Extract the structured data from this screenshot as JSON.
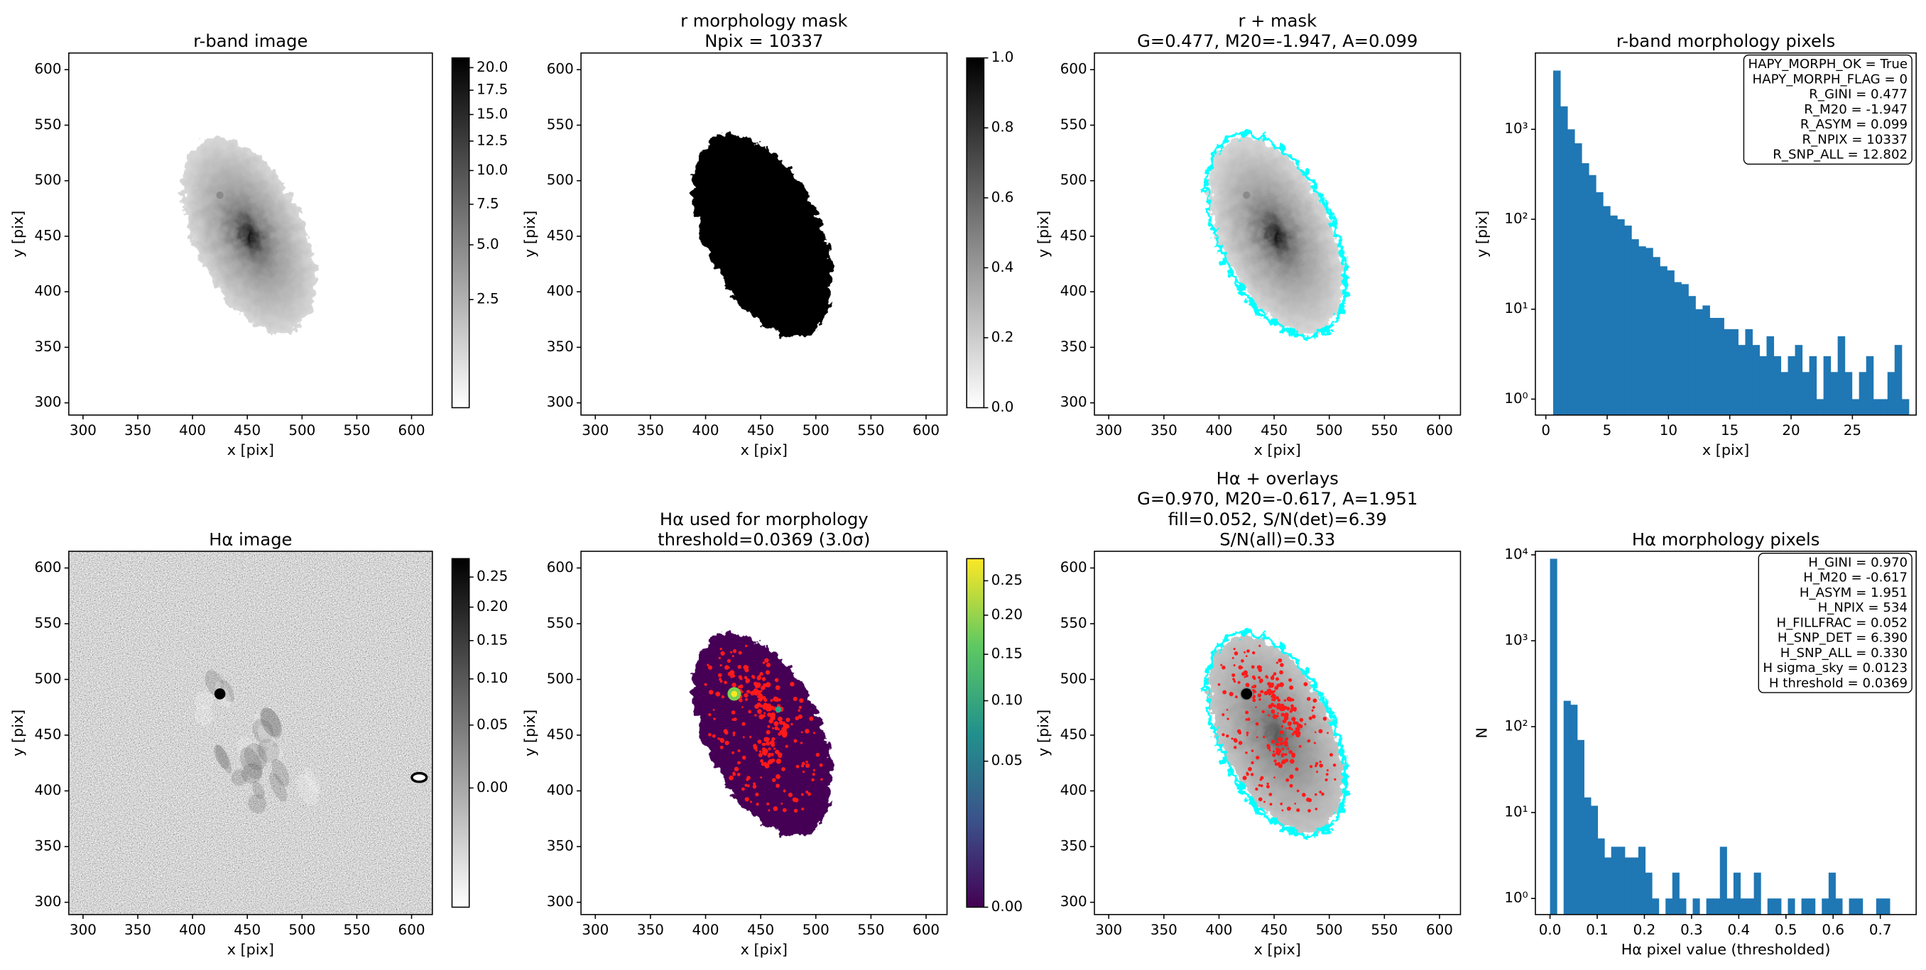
{
  "chart_data": [
    {
      "type": "image",
      "title": "r-band image",
      "xlabel": "x [pix]",
      "ylabel": "y [pix]",
      "xlim": [
        287,
        619
      ],
      "ylim": [
        289,
        615
      ],
      "xticks": [
        300,
        350,
        400,
        450,
        500,
        550,
        600
      ],
      "yticks": [
        300,
        350,
        400,
        450,
        500,
        550,
        600
      ],
      "colorbar": {
        "cmap": "gray_r",
        "stretch": "sqrt",
        "clim": [
          0.533,
          21.13
        ],
        "ticks": [
          2.5,
          {
            "value": 5,
            "label": "5.0"
          },
          7.5,
          {
            "value": 10,
            "label": "10.0"
          },
          12.5,
          {
            "value": 15,
            "label": "15.0"
          },
          17.5,
          {
            "value": 20,
            "label": "20.0"
          }
        ]
      }
    },
    {
      "type": "image",
      "title": [
        "r morphology mask",
        "Npix = 10337"
      ],
      "xlabel": "x [pix]",
      "ylabel": "y [pix]",
      "xlim": [
        287,
        619
      ],
      "ylim": [
        289,
        615
      ],
      "xticks": [
        300,
        350,
        400,
        450,
        500,
        550,
        600
      ],
      "yticks": [
        300,
        350,
        400,
        450,
        500,
        550,
        600
      ],
      "colorbar": {
        "cmap": "gray_r",
        "stretch": "linear",
        "clim": [
          0,
          1
        ],
        "ticks": [
          {
            "value": 0,
            "label": "0.0"
          },
          0.2,
          0.4,
          0.6,
          0.8,
          {
            "value": 1,
            "label": "1.0"
          }
        ]
      }
    },
    {
      "type": "image",
      "title": [
        "r + mask",
        "G=0.477, M20=-1.947, A=0.099"
      ],
      "xlabel": "x [pix]",
      "ylabel": "y [pix]",
      "xlim": [
        287,
        619
      ],
      "ylim": [
        289,
        615
      ],
      "xticks": [
        300,
        350,
        400,
        450,
        500,
        550,
        600
      ],
      "yticks": [
        300,
        350,
        400,
        450,
        500,
        550,
        600
      ]
    },
    {
      "type": "histogram",
      "title": "r-band morphology pixels",
      "xlabel": "x [pix]",
      "ylabel": "y [pix]",
      "yscale": "log",
      "color": "#1f77b4",
      "xlim": [
        -0.85,
        30.2
      ],
      "ylim": [
        0.665,
        7060
      ],
      "xticks": [
        0,
        5,
        10,
        15,
        20,
        25
      ],
      "yticks": [
        {
          "value": 1,
          "label": "10⁰"
        },
        {
          "value": 10,
          "label": "10¹"
        },
        {
          "value": 100,
          "label": "10²"
        },
        {
          "value": 1000,
          "label": "10³"
        }
      ],
      "bins": [
        0.6,
        1.18,
        1.76,
        2.34,
        2.92,
        3.5,
        4.08,
        4.66,
        5.24,
        5.82,
        6.4,
        6.98,
        7.56,
        8.14,
        8.72,
        9.3,
        9.88,
        10.46,
        11.04,
        11.62,
        12.2,
        12.78,
        13.36,
        13.94,
        14.52,
        15.1,
        15.68,
        16.26,
        16.84,
        17.42,
        18.0,
        18.58,
        19.16,
        19.74,
        20.32,
        20.9,
        21.48,
        22.06,
        22.64,
        23.22,
        23.8,
        24.38,
        24.96,
        25.54,
        26.12,
        26.7,
        27.28,
        27.86,
        28.44,
        29.02,
        29.6
      ],
      "values": [
        4500,
        1800,
        1000,
        700,
        420,
        310,
        200,
        140,
        110,
        100,
        85,
        60,
        50,
        48,
        38,
        30,
        27,
        20,
        19,
        14,
        10,
        11,
        8,
        8,
        6,
        6,
        4,
        6,
        4,
        3,
        5,
        3,
        2,
        3,
        4,
        2,
        3,
        1,
        3,
        2,
        5,
        2,
        1,
        2,
        3,
        1,
        1,
        2,
        4,
        1
      ],
      "annotation": [
        "HAPY_MORPH_OK = True",
        "HAPY_MORPH_FLAG = 0",
        "R_GINI = 0.477",
        "R_M20 = -1.947",
        "R_ASYM = 0.099",
        "R_NPIX = 10337",
        "R_SNP_ALL = 12.802"
      ]
    },
    {
      "type": "image",
      "title": "Hα image",
      "xlabel": "x [pix]",
      "ylabel": "y [pix]",
      "xlim": [
        287,
        619
      ],
      "ylim": [
        289,
        615
      ],
      "xticks": [
        300,
        350,
        400,
        450,
        500,
        550,
        600
      ],
      "yticks": [
        300,
        350,
        400,
        450,
        500,
        550,
        600
      ],
      "colorbar": {
        "cmap": "gray_r",
        "stretch": "sqrt",
        "clim": [
          -0.0375,
          0.283
        ],
        "ticks": [
          {
            "value": 0,
            "label": "0.00"
          },
          0.05,
          {
            "value": 0.1,
            "label": "0.10"
          },
          0.15,
          {
            "value": 0.2,
            "label": "0.20"
          },
          0.25
        ]
      }
    },
    {
      "type": "image",
      "title": [
        "Hα used for morphology",
        "threshold=0.0369 (3.0σ)"
      ],
      "xlabel": "x [pix]",
      "ylabel": "y [pix]",
      "xlim": [
        287,
        619
      ],
      "ylim": [
        289,
        615
      ],
      "xticks": [
        300,
        350,
        400,
        450,
        500,
        550,
        600
      ],
      "yticks": [
        300,
        350,
        400,
        450,
        500,
        550,
        600
      ],
      "colorbar": {
        "cmap": "viridis",
        "stretch": "sqrt",
        "clim": [
          0,
          0.285
        ],
        "ticks": [
          {
            "value": 0,
            "label": "0.00"
          },
          0.05,
          {
            "value": 0.1,
            "label": "0.10"
          },
          0.15,
          {
            "value": 0.2,
            "label": "0.20"
          },
          0.25
        ]
      }
    },
    {
      "type": "image",
      "title": [
        "Hα + overlays",
        "G=0.970, M20=-0.617, A=1.951",
        "fill=0.052, S/N(det)=6.39",
        "S/N(all)=0.33"
      ],
      "xlabel": "x [pix]",
      "ylabel": "y [pix]",
      "xlim": [
        287,
        619
      ],
      "ylim": [
        289,
        615
      ],
      "xticks": [
        300,
        350,
        400,
        450,
        500,
        550,
        600
      ],
      "yticks": [
        300,
        350,
        400,
        450,
        500,
        550,
        600
      ]
    },
    {
      "type": "histogram",
      "title": "Hα morphology pixels",
      "xlabel": "Hα pixel value (thresholded)",
      "ylabel": "N",
      "yscale": "log",
      "color": "#1f77b4",
      "xlim": [
        -0.031,
        0.776
      ],
      "ylim": [
        0.65,
        11000
      ],
      "xticks": [
        {
          "value": 0,
          "label": "0.0"
        },
        0.1,
        0.2,
        0.3,
        0.4,
        0.5,
        0.6,
        0.7
      ],
      "yticks": [
        {
          "value": 1,
          "label": "10⁰"
        },
        {
          "value": 10,
          "label": "10¹"
        },
        {
          "value": 100,
          "label": "10²"
        },
        {
          "value": 1000,
          "label": "10³"
        },
        {
          "value": 10000,
          "label": "10⁴"
        }
      ],
      "bins": [
        0,
        0.0144,
        0.0288,
        0.0432,
        0.0576,
        0.072,
        0.0864,
        0.1008,
        0.1152,
        0.1296,
        0.144,
        0.1584,
        0.1728,
        0.1872,
        0.2016,
        0.216,
        0.2304,
        0.2448,
        0.2592,
        0.2736,
        0.288,
        0.3024,
        0.3168,
        0.3312,
        0.3456,
        0.36,
        0.3744,
        0.3888,
        0.4032,
        0.4176,
        0.432,
        0.4464,
        0.4608,
        0.4752,
        0.4896,
        0.504,
        0.5184,
        0.5328,
        0.5472,
        0.5616,
        0.576,
        0.5904,
        0.6048,
        0.6192,
        0.6336,
        0.648,
        0.6624,
        0.6768,
        0.6912,
        0.7056,
        0.72
      ],
      "values": [
        9000,
        0,
        200,
        180,
        70,
        15,
        12,
        5,
        3,
        4,
        4,
        3,
        3,
        4,
        2,
        1,
        0,
        1,
        2,
        1,
        0,
        1,
        0,
        1,
        1,
        4,
        1,
        2,
        1,
        1,
        2,
        0,
        1,
        1,
        0,
        1,
        0,
        1,
        1,
        0,
        1,
        2,
        1,
        0,
        1,
        1,
        0,
        0,
        1,
        1
      ],
      "annotation": [
        "H_GINI = 0.970",
        "H_M20 = -0.617",
        "H_ASYM = 1.951",
        "H_NPIX = 534",
        "H_FILLFRAC = 0.052",
        "H_SNP_DET = 6.390",
        "H_SNP_ALL = 0.330",
        "H sigma_sky = 0.0123",
        "H threshold = 0.0369"
      ]
    }
  ]
}
